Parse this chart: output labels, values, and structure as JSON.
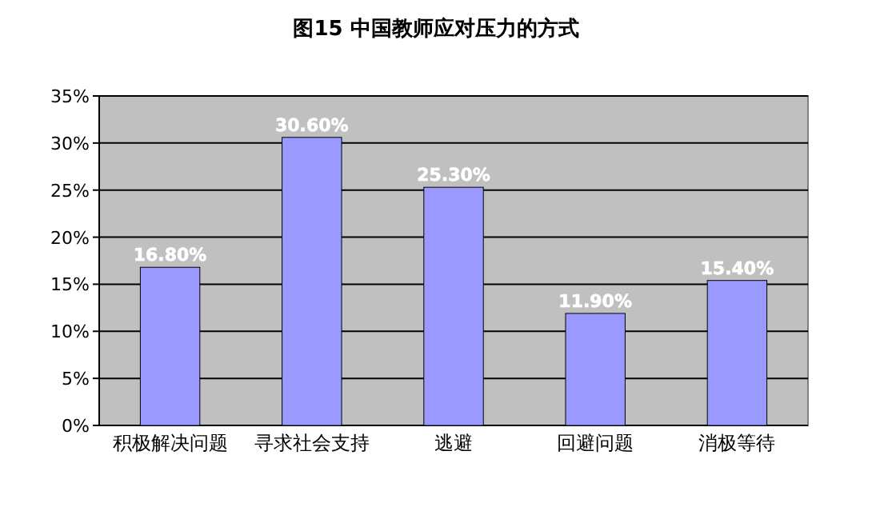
{
  "chart_data": {
    "type": "bar",
    "title": "图15 中国教师应对压力的方式",
    "categories": [
      "积极解决问题",
      "寻求社会支持",
      "逃避",
      "回避问题",
      "消极等待"
    ],
    "values": [
      16.8,
      30.6,
      25.3,
      11.9,
      15.4
    ],
    "value_labels": [
      "16.80%",
      "30.60%",
      "25.30%",
      "11.90%",
      "15.40%"
    ],
    "color": "#9999ff",
    "ylim": [
      0,
      35
    ],
    "yticks": [
      {
        "value": 0,
        "label": "0%"
      },
      {
        "value": 5,
        "label": "5%"
      },
      {
        "value": 10,
        "label": "10%"
      },
      {
        "value": 15,
        "label": "15%"
      },
      {
        "value": 20,
        "label": "20%"
      },
      {
        "value": 25,
        "label": "25%"
      },
      {
        "value": 30,
        "label": "30%"
      },
      {
        "value": 35,
        "label": "35%"
      }
    ],
    "grid": "y"
  }
}
